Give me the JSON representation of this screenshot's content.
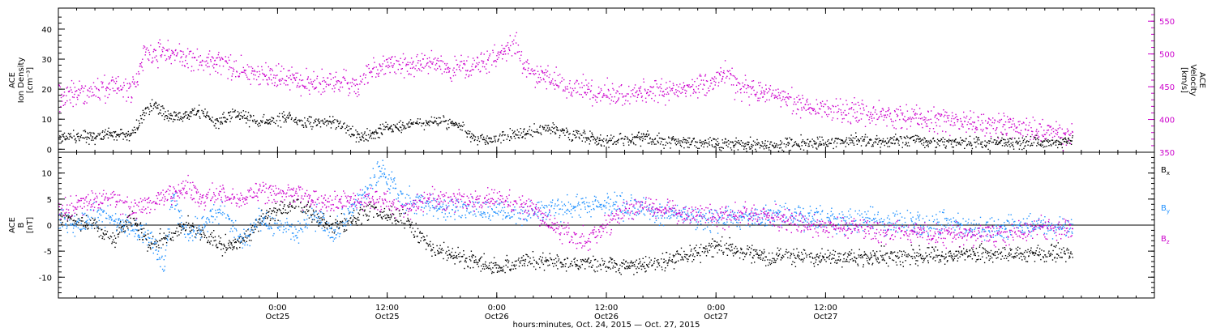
{
  "chart_data": [
    {
      "type": "scatter",
      "panel": "top",
      "ylabel_left": [
        "ACE",
        "Ion Density",
        "[cm⁻³]"
      ],
      "ylabel_right": [
        "ACE",
        "Velocity",
        "[km/s]"
      ],
      "ylim_left": [
        -1,
        47
      ],
      "yticks_left": [
        0,
        10,
        20,
        30,
        40
      ],
      "ylim_right": [
        350,
        570
      ],
      "yticks_right": [
        350,
        400,
        450,
        500,
        550
      ],
      "series": [
        {
          "axis": "left",
          "color": "#000000",
          "noise": 2.0,
          "x": [
            0,
            3,
            6,
            8,
            9.5,
            10.5,
            12,
            13.5,
            15.5,
            17,
            19,
            21,
            23,
            25,
            27,
            29.5,
            30,
            31,
            33,
            35,
            36,
            38,
            40,
            42,
            44,
            46,
            48,
            50,
            52,
            54,
            56,
            58,
            60,
            62,
            64,
            66,
            68,
            70,
            72,
            74,
            76,
            78,
            80,
            82,
            84,
            86,
            88,
            90,
            92,
            94,
            96,
            98,
            100,
            102,
            105,
            108,
            111
          ],
          "y": [
            4,
            4.5,
            5,
            5,
            13,
            15,
            11,
            11,
            13,
            9,
            12,
            10,
            9,
            11,
            9,
            9,
            9,
            8,
            4,
            6,
            7,
            8,
            9,
            9.5,
            8,
            3,
            4,
            5,
            6,
            7,
            5,
            4,
            3,
            3,
            4,
            3,
            3,
            2.5,
            2,
            2,
            1.5,
            1,
            2,
            2.5,
            2.5,
            3,
            3,
            3,
            3,
            3,
            2.5,
            2.5,
            2.5,
            2.5,
            2.5,
            2.5,
            3
          ]
        },
        {
          "axis": "right",
          "color": "#cc00cc",
          "noise": 18,
          "x": [
            0,
            2,
            4,
            6,
            8,
            9.5,
            10.5,
            12,
            14,
            16,
            18,
            20,
            22,
            24,
            26,
            28,
            30,
            31,
            32,
            33.5,
            35,
            37,
            39,
            41,
            43,
            45,
            47,
            48,
            49,
            50,
            51,
            52,
            54,
            56,
            58,
            60,
            62,
            64,
            66,
            68,
            70,
            72,
            73.5,
            74,
            76,
            78,
            80,
            82,
            84,
            86,
            88,
            90,
            92,
            94,
            96,
            98,
            100,
            102,
            104,
            106,
            108,
            110,
            111
          ],
          "y": [
            435,
            440,
            445,
            450,
            445,
            505,
            500,
            505,
            495,
            490,
            485,
            475,
            470,
            465,
            460,
            458,
            462,
            465,
            450,
            468,
            480,
            485,
            488,
            485,
            480,
            480,
            490,
            500,
            510,
            515,
            480,
            470,
            460,
            450,
            445,
            440,
            435,
            440,
            445,
            445,
            450,
            460,
            470,
            455,
            445,
            440,
            430,
            420,
            415,
            415,
            412,
            408,
            405,
            405,
            400,
            398,
            395,
            392,
            390,
            385,
            380,
            378,
            380
          ]
        }
      ]
    },
    {
      "type": "scatter",
      "panel": "bottom",
      "ylabel_left": [
        "ACE",
        "B",
        "[nT]"
      ],
      "ylim": [
        -14,
        14
      ],
      "yticks": [
        -10,
        -5,
        0,
        5,
        10
      ],
      "legend": [
        {
          "label": "B",
          "sub": "x",
          "color": "#000000"
        },
        {
          "label": "B",
          "sub": "y",
          "color": "#1e90ff"
        },
        {
          "label": "B",
          "sub": "z",
          "color": "#cc00cc"
        }
      ],
      "series": [
        {
          "name": "Bx",
          "color": "#000000",
          "noise": 1.6,
          "x": [
            0,
            2,
            4,
            6,
            8,
            10,
            12,
            14,
            16,
            18,
            20,
            22,
            24,
            26,
            28,
            30,
            32,
            34,
            36,
            38,
            40,
            42,
            44,
            46,
            48,
            50,
            52,
            54,
            56,
            58,
            60,
            62,
            64,
            66,
            68,
            70,
            72,
            74,
            76,
            78,
            80,
            82,
            84,
            86,
            88,
            90,
            92,
            94,
            96,
            98,
            100,
            102,
            104,
            106,
            108,
            110,
            111
          ],
          "y": [
            2,
            1,
            0,
            -3,
            2,
            -4,
            -2,
            0,
            -2,
            -4,
            -3,
            1,
            3,
            4,
            2,
            0,
            1,
            3,
            2,
            1,
            -3,
            -5,
            -6,
            -7,
            -8,
            -7,
            -6.5,
            -7,
            -7,
            -7.5,
            -7.5,
            -8,
            -7.5,
            -7,
            -6,
            -5,
            -4,
            -4.5,
            -5.5,
            -6,
            -6,
            -6,
            -6,
            -6.2,
            -6.2,
            -6,
            -5.8,
            -5.8,
            -5.8,
            -5.6,
            -5.5,
            -5.5,
            -5.5,
            -5.5,
            -5.3,
            -5.5,
            -5.5
          ]
        },
        {
          "name": "By",
          "color": "#1e90ff",
          "noise": 2.2,
          "x": [
            0,
            2,
            4,
            6,
            8,
            10,
            11.5,
            12.5,
            14,
            16,
            18,
            20,
            22,
            24,
            26,
            28,
            30,
            32,
            34,
            35.5,
            36,
            38,
            40,
            42,
            44,
            46,
            48,
            50,
            52,
            54,
            56,
            58,
            60,
            62,
            64,
            66,
            68,
            70,
            72,
            74,
            76,
            78,
            80,
            82,
            84,
            86,
            88,
            90,
            92,
            94,
            96,
            98,
            100,
            102,
            104,
            106,
            108,
            110,
            111
          ],
          "y": [
            1,
            0,
            2,
            1,
            -1,
            -2,
            -8,
            6,
            -2,
            0,
            3,
            -3,
            1,
            0,
            -1,
            2,
            -2,
            3,
            7,
            11,
            8,
            5,
            4,
            3,
            3,
            2.5,
            2.5,
            2,
            2.5,
            3,
            3.5,
            4,
            4,
            3.5,
            3,
            2,
            2,
            1.5,
            1.5,
            1.5,
            1.5,
            2,
            2,
            1.5,
            1.5,
            1,
            1,
            1,
            0.5,
            0.5,
            0.5,
            0,
            -0.5,
            -0.5,
            -0.5,
            0,
            0,
            -0.5,
            -1
          ]
        },
        {
          "name": "Bz",
          "color": "#cc00cc",
          "noise": 2.0,
          "x": [
            0,
            2,
            4,
            6,
            8,
            10,
            12,
            14,
            16,
            18,
            20,
            22,
            24,
            26,
            28,
            30,
            32,
            34,
            36,
            38,
            40,
            42,
            44,
            46,
            48,
            50,
            52,
            54,
            56,
            58,
            60,
            62,
            64,
            66,
            68,
            70,
            72,
            74,
            76,
            78,
            80,
            82,
            84,
            86,
            88,
            90,
            92,
            94,
            96,
            98,
            100,
            102,
            104,
            106,
            108,
            110,
            111
          ],
          "y": [
            3,
            4,
            5,
            5,
            3,
            4,
            6,
            7,
            5,
            6,
            5,
            7,
            6,
            6,
            5,
            4,
            5,
            5,
            4,
            3,
            5,
            5,
            5,
            4.5,
            5,
            4,
            3,
            0,
            -2,
            -3,
            0,
            3,
            3.5,
            3,
            2.5,
            2,
            1.5,
            2,
            2.5,
            1.5,
            1,
            0,
            -0.5,
            -0.5,
            -0.5,
            -1,
            -1.2,
            -1.5,
            -1.7,
            -1.5,
            -1.5,
            -1.5,
            -1.5,
            -1,
            -0.5,
            -0.5,
            -1
          ]
        }
      ]
    }
  ],
  "x_axis": {
    "range_hours": [
      0,
      120
    ],
    "ticks": [
      {
        "h": 0,
        "time": "",
        "date": ""
      },
      {
        "h": 24,
        "time": "0:00",
        "date": "Oct25"
      },
      {
        "h": 36,
        "time": "12:00",
        "date": "Oct25"
      },
      {
        "h": 48,
        "time": "0:00",
        "date": "Oct26"
      },
      {
        "h": 60,
        "time": "12:00",
        "date": "Oct26"
      },
      {
        "h": 72,
        "time": "0:00",
        "date": "Oct27"
      },
      {
        "h": 84,
        "time": "12:00",
        "date": "Oct27"
      }
    ],
    "label": "hours:minutes, Oct. 24, 2015 — Oct. 27, 2015"
  }
}
